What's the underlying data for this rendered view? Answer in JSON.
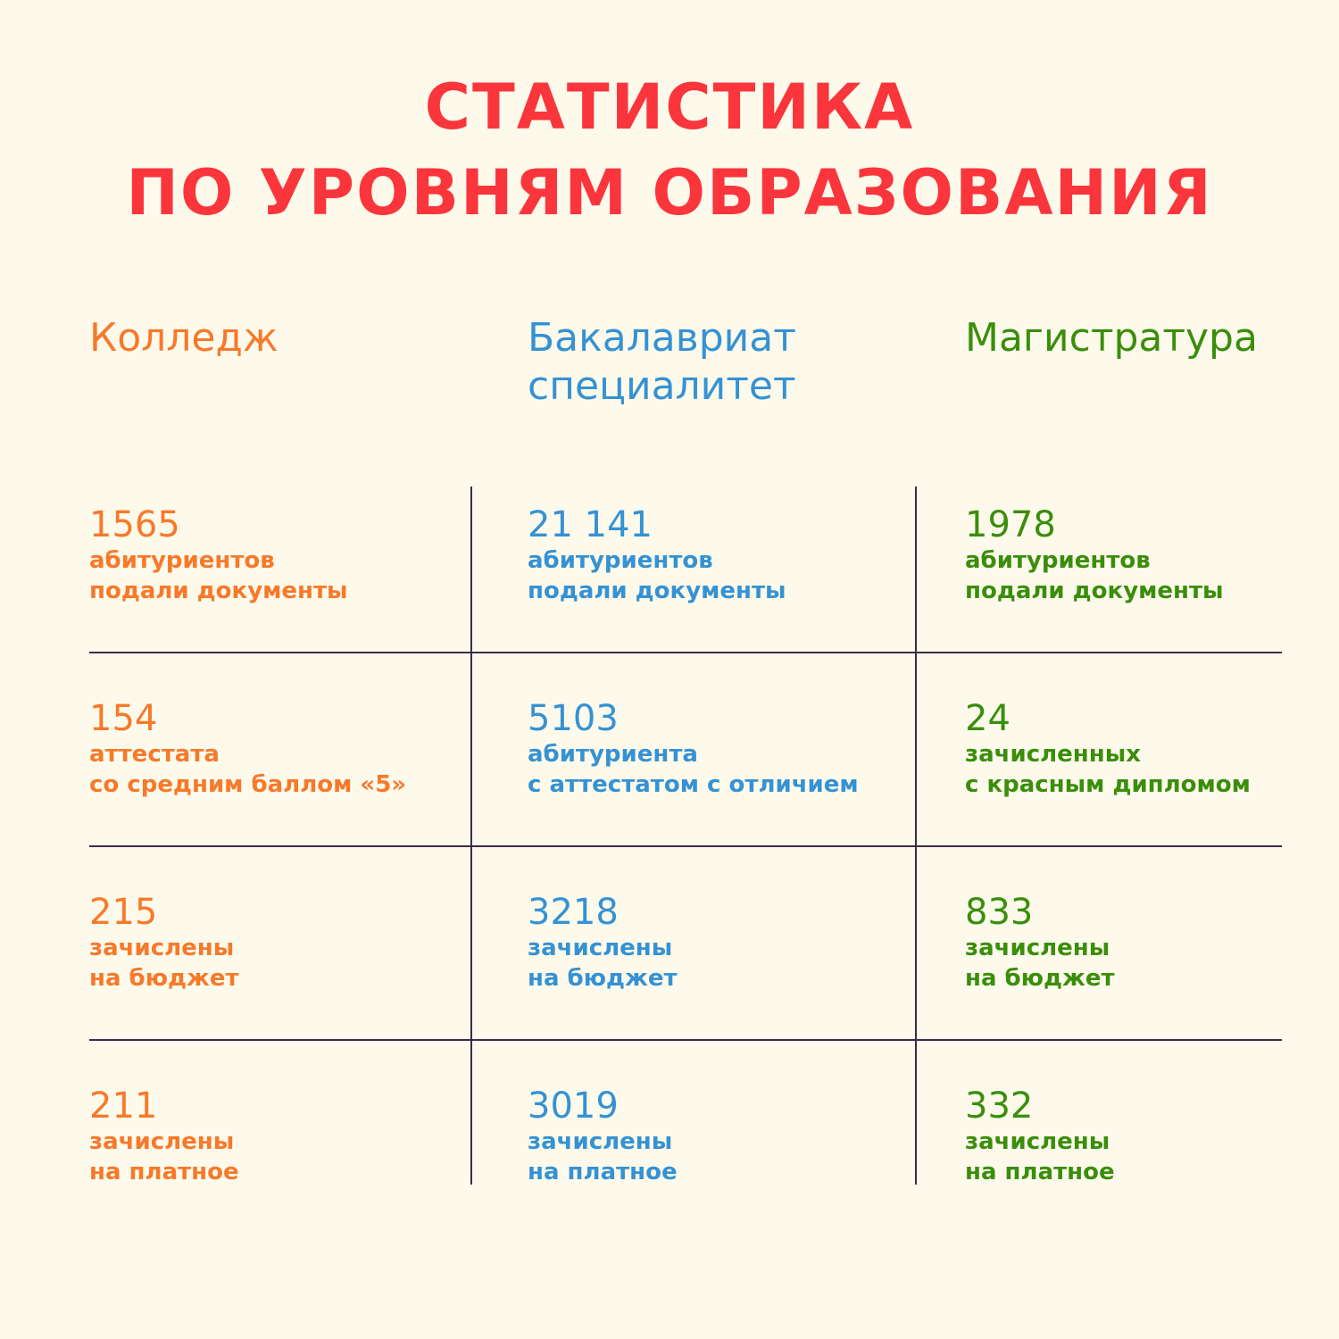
{
  "title": {
    "line1": "СТАТИСТИКА",
    "line2": "ПО УРОВНЯМ ОБРАЗОВАНИЯ"
  },
  "colors": {
    "title": "#fb353c",
    "college": "#f7792a",
    "bachelor": "#3592d3",
    "master": "#3a8e0b",
    "grid": "#3f2a4a",
    "background": "#fefaeb"
  },
  "columns": [
    {
      "line1": "Колледж",
      "line2": ""
    },
    {
      "line1": "Бакалавриат",
      "line2": "специалитет"
    },
    {
      "line1": "Магистратура",
      "line2": ""
    }
  ],
  "rows": [
    [
      {
        "value": "1565",
        "line1": "абитуриентов",
        "line2": "подали документы"
      },
      {
        "value": "21 141",
        "line1": "абитуриентов",
        "line2": "подали документы"
      },
      {
        "value": "1978",
        "line1": "абитуриентов",
        "line2": "подали документы"
      }
    ],
    [
      {
        "value": "154",
        "line1": "аттестата",
        "line2": "со средним баллом «5»"
      },
      {
        "value": "5103",
        "line1": "абитуриента",
        "line2": "с аттестатом с отличием"
      },
      {
        "value": "24",
        "line1": "зачисленных",
        "line2": "с красным дипломом"
      }
    ],
    [
      {
        "value": "215",
        "line1": "зачислены",
        "line2": "на бюджет"
      },
      {
        "value": "3218",
        "line1": "зачислены",
        "line2": "на бюджет"
      },
      {
        "value": "833",
        "line1": "зачислены",
        "line2": "на бюджет"
      }
    ],
    [
      {
        "value": "211",
        "line1": "зачислены",
        "line2": "на платное"
      },
      {
        "value": "3019",
        "line1": "зачислены",
        "line2": "на платное"
      },
      {
        "value": "332",
        "line1": "зачислены",
        "line2": "на платное"
      }
    ]
  ]
}
